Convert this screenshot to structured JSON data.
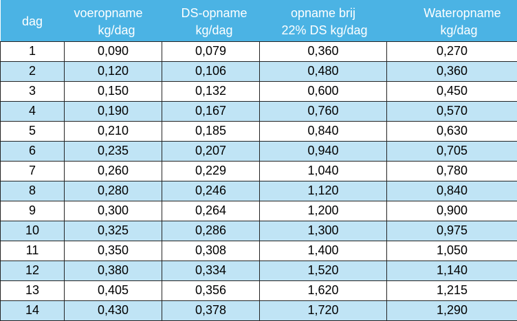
{
  "table": {
    "headers": [
      {
        "line1": "",
        "line2": "dag"
      },
      {
        "line1": "voeropname",
        "line2": "kg/dag"
      },
      {
        "line1": "DS-opname",
        "line2": "kg/dag"
      },
      {
        "line1": "opname brij",
        "line2": "22% DS kg/dag"
      },
      {
        "line1": "Wateropname",
        "line2": "kg/dag"
      }
    ],
    "rows": [
      [
        "1",
        "0,090",
        "0,079",
        "0,360",
        "0,270"
      ],
      [
        "2",
        "0,120",
        "0,106",
        "0,480",
        "0,360"
      ],
      [
        "3",
        "0,150",
        "0,132",
        "0,600",
        "0,450"
      ],
      [
        "4",
        "0,190",
        "0,167",
        "0,760",
        "0,570"
      ],
      [
        "5",
        "0,210",
        "0,185",
        "0,840",
        "0,630"
      ],
      [
        "6",
        "0,235",
        "0,207",
        "0,940",
        "0,705"
      ],
      [
        "7",
        "0,260",
        "0,229",
        "1,040",
        "0,780"
      ],
      [
        "8",
        "0,280",
        "0,246",
        "1,120",
        "0,840"
      ],
      [
        "9",
        "0,300",
        "0,264",
        "1,200",
        "0,900"
      ],
      [
        "10",
        "0,325",
        "0,286",
        "1,300",
        "0,975"
      ],
      [
        "11",
        "0,350",
        "0,308",
        "1,400",
        "1,050"
      ],
      [
        "12",
        "0,380",
        "0,334",
        "1,520",
        "1,140"
      ],
      [
        "13",
        "0,405",
        "0,356",
        "1,620",
        "1,215"
      ],
      [
        "14",
        "0,430",
        "0,378",
        "1,720",
        "1,290"
      ]
    ]
  },
  "colors": {
    "header_bg": "#4bb3e4",
    "header_text": "#ffffff",
    "band_row": "#c0e4f5",
    "plain_row": "#ffffff",
    "grid": "#222222"
  }
}
